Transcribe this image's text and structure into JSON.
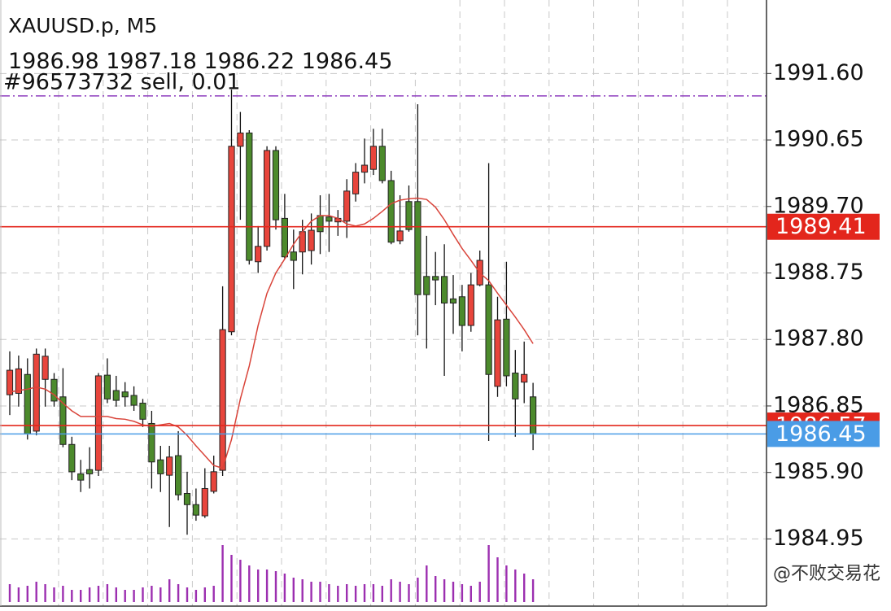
{
  "chart_data": {
    "type": "candlestick",
    "title": "XAUUSD.p, M5",
    "ylim": [
      1983.99,
      1992.65
    ],
    "yticks": [
      {
        "value": 1991.6,
        "label": "1991.60"
      },
      1990.65,
      {
        "value": 1989.7,
        "label": "1989.70"
      },
      1988.75,
      {
        "value": 1987.8,
        "label": "1987.80"
      },
      1986.85,
      {
        "value": 1985.9,
        "label": "1985.90"
      },
      1984.95
    ],
    "grid": true,
    "up_color": "#e8453c",
    "down_color": "#4c8a2c",
    "open": [
      1987.01,
      1987.03,
      1987.3,
      1986.49,
      1987.23,
      1987.23,
      1986.98,
      1986.3,
      1985.88,
      1985.94,
      1985.93,
      1987.29,
      1987.07,
      1987.05,
      1987.0,
      1986.89,
      1986.6,
      1986.08,
      1985.86,
      1986.14,
      1985.6,
      1985.44,
      1985.28,
      1985.63,
      1985.93,
      1987.91,
      1990.56,
      1990.75,
      1988.91,
      1989.13,
      1990.5,
      1989.53,
      1989.05,
      1989.05,
      1989.07,
      1989.57,
      1989.55,
      1989.48,
      1989.49,
      1989.88,
      1990.19,
      1990.23,
      1990.56,
      1990.07,
      1989.21,
      1989.77,
      1989.77,
      1988.7,
      1988.7,
      1988.7,
      1988.38,
      1988.41,
      1988.0,
      1988.58,
      1988.58,
      1987.13,
      1988.09,
      1987.32,
      1987.19,
      1986.98
    ],
    "high": [
      1987.63,
      1987.57,
      1987.53,
      1987.67,
      1987.67,
      1987.32,
      1987.39,
      1986.41,
      1986.08,
      1986.26,
      1987.32,
      1987.53,
      1987.28,
      1987.19,
      1987.13,
      1986.95,
      1986.78,
      1986.28,
      1986.28,
      1986.49,
      1985.91,
      1985.67,
      1985.96,
      1986.14,
      1988.56,
      1991.37,
      1991.05,
      1990.79,
      1989.42,
      1990.56,
      1990.56,
      1989.88,
      1989.37,
      1989.51,
      1989.6,
      1989.86,
      1989.88,
      1989.65,
      1990.09,
      1990.32,
      1990.67,
      1990.81,
      1990.81,
      1990.21,
      1989.86,
      1990.0,
      1991.16,
      1989.28,
      1989.05,
      1989.16,
      1988.72,
      1988.58,
      1988.75,
      1989.07,
      1990.32,
      1988.41,
      1988.91,
      1987.65,
      1987.77,
      1987.18
    ],
    "low": [
      1986.72,
      1986.84,
      1986.37,
      1986.43,
      1986.84,
      1986.84,
      1986.26,
      1985.79,
      1985.62,
      1985.67,
      1985.85,
      1986.89,
      1986.84,
      1986.84,
      1986.78,
      1986.55,
      1985.67,
      1985.62,
      1985.12,
      1985.5,
      1985.01,
      1985.21,
      1985.25,
      1985.6,
      1985.85,
      1987.86,
      1989.51,
      1988.87,
      1988.75,
      1989.07,
      1989.37,
      1988.95,
      1988.52,
      1988.73,
      1988.87,
      1989.02,
      1989.05,
      1989.28,
      1989.25,
      1989.77,
      1990.03,
      1990.15,
      1990.03,
      1989.16,
      1989.16,
      1989.34,
      1987.86,
      1987.67,
      1988.29,
      1987.28,
      1987.88,
      1987.63,
      1987.91,
      1988.56,
      1986.35,
      1986.98,
      1987.13,
      1986.41,
      1986.89,
      1986.22
    ],
    "close": [
      1987.36,
      1987.38,
      1986.45,
      1987.59,
      1987.56,
      1986.92,
      1986.3,
      1985.91,
      1985.79,
      1985.88,
      1987.28,
      1986.95,
      1986.93,
      1986.98,
      1986.86,
      1986.66,
      1986.05,
      1985.88,
      1986.12,
      1985.58,
      1985.44,
      1985.29,
      1985.67,
      1985.91,
      1987.94,
      1990.56,
      1990.75,
      1988.93,
      1989.13,
      1990.5,
      1989.51,
      1988.98,
      1988.93,
      1989.34,
      1989.36,
      1989.34,
      1989.49,
      1989.53,
      1989.92,
      1990.19,
      1990.29,
      1990.56,
      1990.07,
      1989.19,
      1989.35,
      1989.37,
      1988.44,
      1988.44,
      1988.65,
      1988.32,
      1988.32,
      1988.0,
      1988.58,
      1988.93,
      1987.3,
      1988.08,
      1987.28,
      1986.95,
      1987.3,
      1986.45
    ],
    "volume": [
      22,
      18,
      20,
      25,
      22,
      18,
      20,
      15,
      15,
      18,
      20,
      22,
      18,
      15,
      15,
      18,
      20,
      18,
      28,
      22,
      18,
      15,
      18,
      20,
      70,
      58,
      52,
      45,
      40,
      40,
      38,
      35,
      30,
      28,
      25,
      25,
      22,
      20,
      22,
      20,
      22,
      22,
      20,
      28,
      25,
      22,
      30,
      45,
      32,
      28,
      25,
      22,
      20,
      25,
      70,
      55,
      45,
      40,
      35,
      28
    ],
    "volume_color": "#9c2fb0",
    "ma": {
      "color": "#d9443a",
      "values": [
        1987.05,
        1987.07,
        1987.09,
        1987.12,
        1987.09,
        1987.01,
        1986.89,
        1986.78,
        1986.7,
        1986.7,
        1986.7,
        1986.7,
        1986.67,
        1986.66,
        1986.63,
        1986.58,
        1986.56,
        1986.58,
        1986.6,
        1986.55,
        1986.43,
        1986.28,
        1986.14,
        1986.0,
        1985.96,
        1986.37,
        1986.95,
        1987.42,
        1988.0,
        1988.46,
        1988.75,
        1988.95,
        1989.16,
        1989.34,
        1989.49,
        1989.57,
        1989.57,
        1989.53,
        1989.45,
        1989.42,
        1989.45,
        1989.53,
        1989.63,
        1989.74,
        1989.79,
        1989.81,
        1989.82,
        1989.8,
        1989.69,
        1989.51,
        1989.3,
        1989.1,
        1988.93,
        1988.75,
        1988.64,
        1988.46,
        1988.29,
        1988.12,
        1987.94,
        1987.74
      ]
    },
    "order_line": {
      "value": 1991.28,
      "label": "#96573732 sell, 0.01",
      "color": "#8e3fbf"
    },
    "price_lines": [
      {
        "value": 1989.41,
        "color": "#e3261c"
      },
      {
        "value": 1986.57,
        "color": "#e3261c"
      },
      {
        "value": 1986.45,
        "color": "#4a9ce6"
      }
    ],
    "watermark": "@不败交易花"
  }
}
